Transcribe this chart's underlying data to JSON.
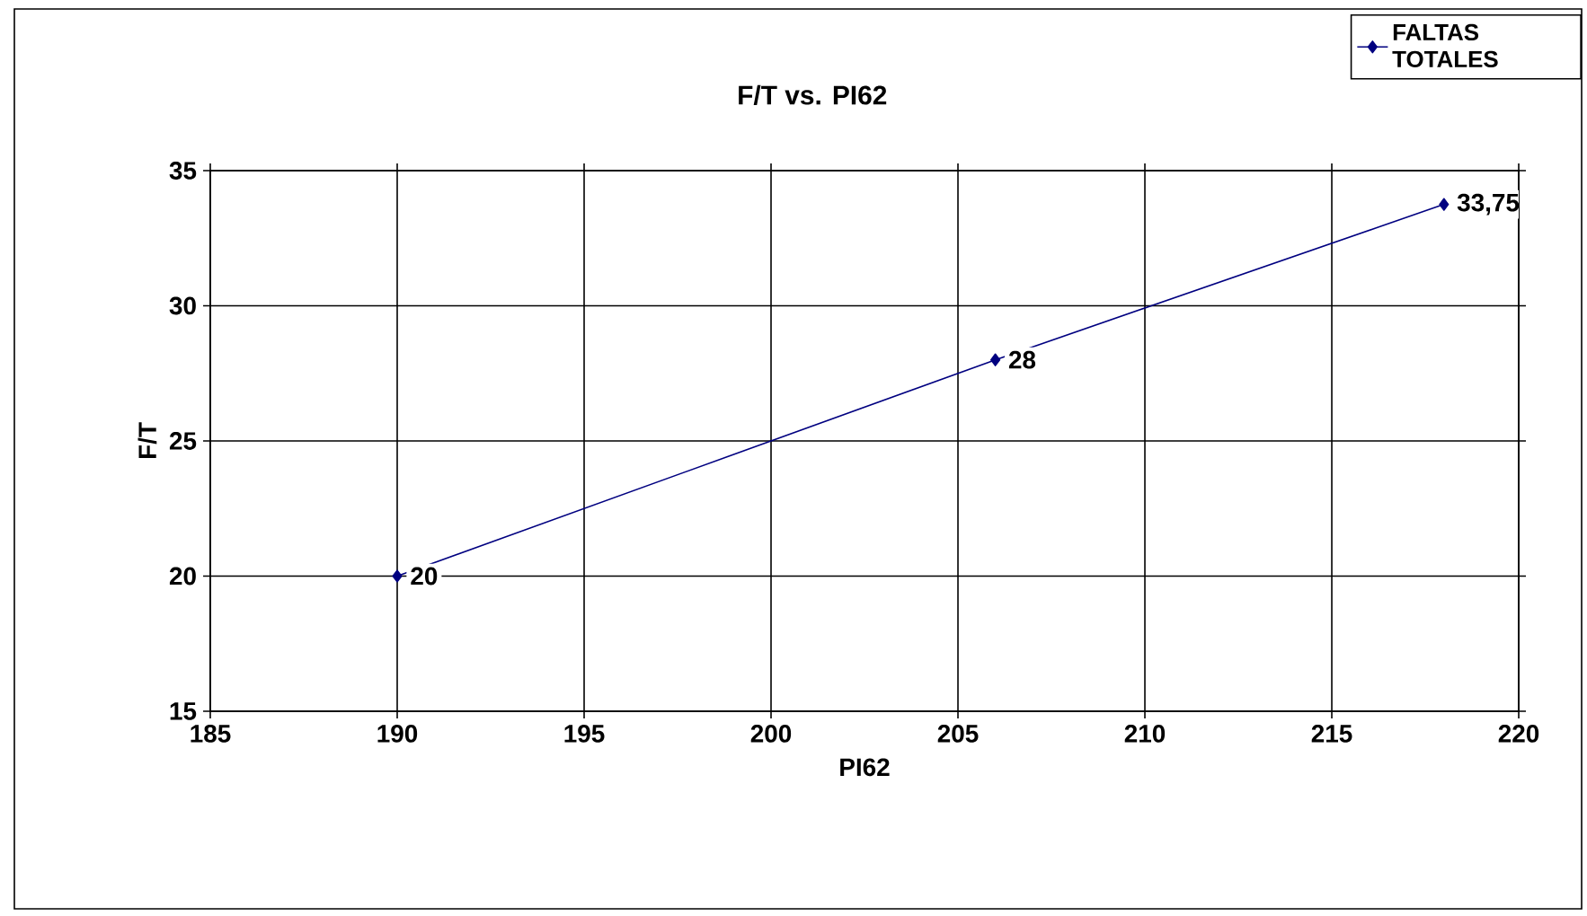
{
  "chart_data": {
    "type": "line",
    "title": "F/T  vs. PI62",
    "xlabel": "PI62",
    "ylabel": "F/T",
    "x": [
      190,
      206,
      218
    ],
    "series": [
      {
        "name": "FALTAS TOTALES",
        "color": "#000080",
        "values": [
          20,
          28,
          33.75
        ],
        "value_labels": [
          "20",
          "28",
          "33,75"
        ]
      }
    ],
    "xlim": [
      185,
      220
    ],
    "xticks": [
      185,
      190,
      195,
      200,
      205,
      210,
      215,
      220
    ],
    "ylim": [
      15,
      35
    ],
    "yticks": [
      15,
      20,
      25,
      30,
      35
    ],
    "grid": true,
    "legend": "top right",
    "marker": "diamond",
    "line_style": "solid"
  }
}
